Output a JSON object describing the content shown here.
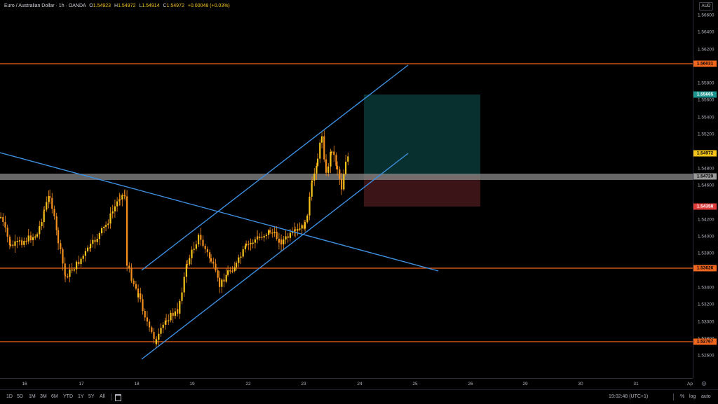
{
  "legend": {
    "symbol": "Euro / Australian Dollar · 1h · OANDA",
    "open_label": "O",
    "open": "1.54923",
    "high_label": "H",
    "high": "1.54972",
    "low_label": "L",
    "low": "1.54914",
    "close_label": "C",
    "close": "1.54972",
    "change": "+0.00048 (+0.03%)"
  },
  "currency": "AUD",
  "price_axis": {
    "ticks": [
      "1.56600",
      "1.56400",
      "1.56200",
      "1.55800",
      "1.55600",
      "1.55400",
      "1.55200",
      "1.54800",
      "1.54600",
      "1.54200",
      "1.54000",
      "1.53800",
      "1.53400",
      "1.53200",
      "1.53000",
      "1.52800",
      "1.52600"
    ]
  },
  "price_tags": {
    "resistance_top": "1.56031",
    "target": "1.55665",
    "last_price": "1.54972",
    "zone": "1.54729",
    "stop": "1.54358",
    "support_mid": "1.53626",
    "support_low": "1.52767"
  },
  "colors": {
    "accent_orange": "#f5901e",
    "horizontal_line": "#f0661e",
    "trendline": "#3d8fe0",
    "target_zone": "#08302f",
    "stop_zone": "#3a1416",
    "last_price": "#f5c41b",
    "target_tag": "#1e958e",
    "stop_tag": "#e03c3c"
  },
  "time_axis": {
    "labels": [
      "16",
      "17",
      "18",
      "19",
      "22",
      "23",
      "24",
      "25",
      "26",
      "29",
      "30",
      "31",
      "Ap"
    ]
  },
  "bottom_bar": {
    "ranges": [
      "1D",
      "5D",
      "1M",
      "3M",
      "6M",
      "YTD",
      "1Y",
      "5Y",
      "All"
    ],
    "clock": "19:02:48 (UTC+1)",
    "percent": "%",
    "log": "log",
    "auto": "auto"
  },
  "icons": {
    "calendar": "calendar-icon",
    "settings": "gear-icon"
  }
}
